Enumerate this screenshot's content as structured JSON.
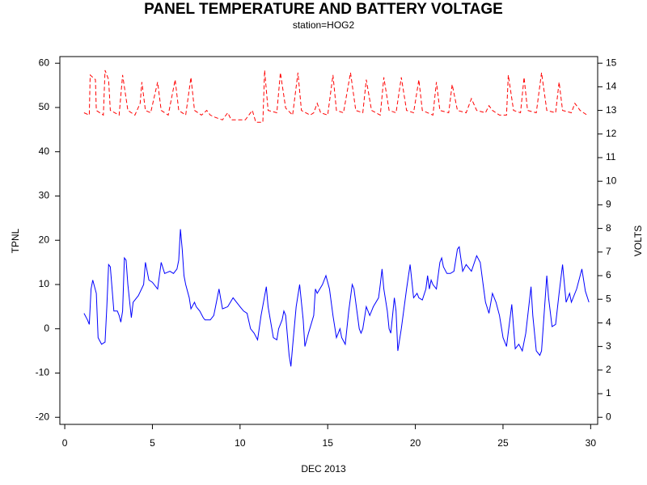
{
  "chart_data": {
    "type": "line",
    "title": "PANEL TEMPERATURE AND BATTERY VOLTAGE",
    "subtitle": "station=HOG2",
    "xlabel": "DEC 2013",
    "ylabel": "TPNL",
    "y2label": "VOLTS",
    "xlim": [
      -0.28,
      30.4
    ],
    "xticks": [
      0,
      5,
      10,
      15,
      20,
      25,
      30
    ],
    "ylim": [
      -21.6,
      61.5
    ],
    "yticks": [
      -20,
      -10,
      0,
      10,
      20,
      30,
      40,
      50,
      60
    ],
    "y2lim": [
      -0.3,
      15.28
    ],
    "y2ticks": [
      0,
      1,
      2,
      3,
      4,
      5,
      6,
      7,
      8,
      9,
      10,
      11,
      12,
      13,
      14,
      15
    ],
    "series": [
      {
        "name": "TPNL",
        "color": "#0000ff",
        "dash": false,
        "x": [
          1.1,
          1.3,
          1.4,
          1.5,
          1.6,
          1.8,
          1.9,
          2.1,
          2.3,
          2.4,
          2.5,
          2.6,
          2.8,
          3.0,
          3.1,
          3.2,
          3.3,
          3.4,
          3.5,
          3.6,
          3.8,
          3.9,
          4.2,
          4.5,
          4.6,
          4.8,
          5.0,
          5.3,
          5.5,
          5.7,
          6.0,
          6.2,
          6.4,
          6.5,
          6.6,
          6.7,
          6.8,
          6.9,
          7.1,
          7.2,
          7.4,
          7.5,
          7.7,
          7.9,
          8.0,
          8.3,
          8.5,
          8.6,
          8.8,
          9.0,
          9.3,
          9.6,
          9.8,
          10.0,
          10.2,
          10.4,
          10.6,
          10.8,
          11.0,
          11.2,
          11.5,
          11.6,
          11.9,
          12.1,
          12.2,
          12.4,
          12.5,
          12.6,
          12.8,
          12.9,
          13.0,
          13.2,
          13.4,
          13.6,
          13.7,
          13.9,
          14.2,
          14.3,
          14.4,
          14.7,
          14.9,
          15.1,
          15.3,
          15.5,
          15.7,
          15.8,
          16.0,
          16.2,
          16.4,
          16.5,
          16.8,
          16.9,
          17.0,
          17.2,
          17.4,
          17.6,
          17.9,
          18.0,
          18.1,
          18.2,
          18.4,
          18.5,
          18.6,
          18.8,
          18.9,
          19.0,
          19.2,
          19.5,
          19.7,
          19.9,
          20.1,
          20.2,
          20.4,
          20.6,
          20.7,
          20.8,
          20.9,
          21.0,
          21.2,
          21.4,
          21.5,
          21.6,
          21.8,
          22.0,
          22.2,
          22.4,
          22.5,
          22.7,
          22.9,
          23.2,
          23.5,
          23.7,
          23.9,
          24.0,
          24.2,
          24.4,
          24.6,
          24.8,
          25.0,
          25.2,
          25.5,
          25.7,
          25.9,
          26.1,
          26.3,
          26.6,
          26.7,
          26.9,
          27.1,
          27.2,
          27.5,
          27.6,
          27.8,
          28.0,
          28.2,
          28.4,
          28.6,
          28.8,
          28.9,
          29.2,
          29.5,
          29.7,
          29.9
        ],
        "values": [
          3.5,
          2,
          1,
          9,
          11,
          8,
          -2,
          -3.5,
          -3,
          5,
          14.5,
          14,
          4,
          4,
          3,
          1.5,
          4,
          16,
          15.5,
          10,
          2.5,
          6,
          7.5,
          10,
          15,
          11,
          10.5,
          9,
          15,
          12.5,
          13,
          12.5,
          13.5,
          15.5,
          22.5,
          18,
          12,
          10,
          7,
          4.5,
          6,
          5,
          4,
          2.5,
          2,
          2,
          3,
          5,
          9,
          4.5,
          5,
          7,
          6,
          5,
          4,
          3.5,
          0,
          -1,
          -2.5,
          3,
          9.5,
          5,
          -2,
          -2.5,
          0,
          2,
          4,
          3,
          -6,
          -8.5,
          -4,
          5,
          10,
          2,
          -4,
          -1,
          3,
          9,
          8,
          10,
          12,
          9,
          3,
          -2,
          0,
          -2,
          -3.5,
          4,
          10,
          9,
          0,
          -1,
          0,
          5,
          3,
          5,
          7,
          10,
          13.5,
          9,
          4,
          0,
          -1,
          7,
          4,
          -5,
          0,
          9,
          14.5,
          7,
          8,
          7,
          6.5,
          9,
          12,
          9,
          11,
          10,
          9,
          15,
          16,
          14,
          12.5,
          12.5,
          13,
          18,
          18.5,
          13,
          14.5,
          13,
          16.5,
          15,
          9,
          6,
          3.5,
          8,
          6,
          3,
          -2,
          -4,
          5.5,
          -4.5,
          -3.5,
          -5,
          -1,
          9.5,
          3,
          -5,
          -6,
          -5,
          12,
          7,
          0.5,
          1,
          8,
          14.5,
          6,
          8,
          6,
          9,
          13.5,
          8.5,
          6
        ]
      },
      {
        "name": "VOLTS",
        "color": "#ff0000",
        "dash": true,
        "axis": "y2",
        "x": [
          1.1,
          1.4,
          1.45,
          1.75,
          1.8,
          2.2,
          2.3,
          2.5,
          2.6,
          3.1,
          3.3,
          3.6,
          4.0,
          4.3,
          4.4,
          4.6,
          4.9,
          5.3,
          5.5,
          5.9,
          6.3,
          6.5,
          6.9,
          7.2,
          7.4,
          7.8,
          8.1,
          8.3,
          8.6,
          9.0,
          9.3,
          9.5,
          10.0,
          10.3,
          10.7,
          10.9,
          11.3,
          11.4,
          11.6,
          12.1,
          12.3,
          12.6,
          13.0,
          13.3,
          13.5,
          14.0,
          14.2,
          14.4,
          14.6,
          15.0,
          15.3,
          15.5,
          15.9,
          16.3,
          16.6,
          17.0,
          17.2,
          17.5,
          18.0,
          18.2,
          18.5,
          18.9,
          19.2,
          19.5,
          19.9,
          20.2,
          20.4,
          21.0,
          21.2,
          21.4,
          21.9,
          22.1,
          22.4,
          22.9,
          23.2,
          23.5,
          24.0,
          24.2,
          24.4,
          24.8,
          25.2,
          25.3,
          25.6,
          26.0,
          26.2,
          26.4,
          26.9,
          27.2,
          27.5,
          28.0,
          28.2,
          28.4,
          28.9,
          29.1,
          29.4,
          29.8
        ],
        "values": [
          12.9,
          12.8,
          14.5,
          14.3,
          13.0,
          12.8,
          14.7,
          14.3,
          13.0,
          12.8,
          14.5,
          13.0,
          12.8,
          13.3,
          14.2,
          13.0,
          12.9,
          14.2,
          13.0,
          12.8,
          14.3,
          13.0,
          12.8,
          14.4,
          13.0,
          12.8,
          13.0,
          12.8,
          12.7,
          12.6,
          12.9,
          12.6,
          12.6,
          12.6,
          13.0,
          12.5,
          12.5,
          14.7,
          13.0,
          12.9,
          14.6,
          13.1,
          12.8,
          14.6,
          13.0,
          12.8,
          12.9,
          13.3,
          12.9,
          12.8,
          14.5,
          13.0,
          12.9,
          14.6,
          13.0,
          12.9,
          14.3,
          13.0,
          12.8,
          14.4,
          13.0,
          12.9,
          14.4,
          13.0,
          12.9,
          14.3,
          13.0,
          12.8,
          14.2,
          13.0,
          12.9,
          14.1,
          13.0,
          12.9,
          13.5,
          13.0,
          12.9,
          13.2,
          13.0,
          12.8,
          12.8,
          14.5,
          13.0,
          12.9,
          14.4,
          13.0,
          12.9,
          14.6,
          13.0,
          12.9,
          14.2,
          13.0,
          12.9,
          13.3,
          13.0,
          12.8
        ]
      }
    ]
  }
}
